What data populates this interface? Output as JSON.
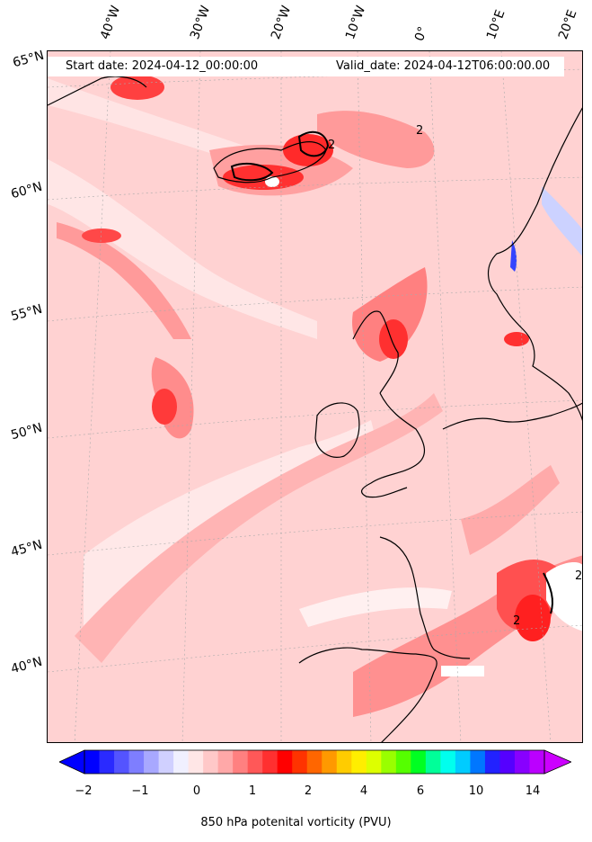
{
  "header": {
    "start_date": "Start date: 2024-04-12_00:00:00",
    "valid_date": "Valid_date: 2024-04-12T06:00:00.00"
  },
  "longitude_labels": [
    "40°W",
    "30°W",
    "20°W",
    "10°W",
    "0°",
    "10°E",
    "20°E"
  ],
  "latitude_labels": [
    "65°N",
    "60°N",
    "55°N",
    "50°N",
    "45°N",
    "40°N"
  ],
  "contour_labels": [
    "2",
    "2",
    "2",
    "2"
  ],
  "colorbar": {
    "label": "850 hPa potenital vorticity (PVU)",
    "tick_labels": [
      "−2",
      "−1",
      "0",
      "1",
      "2",
      "4",
      "6",
      "10",
      "14"
    ],
    "colors": [
      "#0000ff",
      "#2a2aff",
      "#5454ff",
      "#7e7eff",
      "#a8a8ff",
      "#d0d0ff",
      "#f0f0ff",
      "#ffe6e6",
      "#ffc8c8",
      "#ffa8a8",
      "#ff8080",
      "#ff5858",
      "#ff3030",
      "#ff0000",
      "#ff3300",
      "#ff6600",
      "#ff9900",
      "#ffcc00",
      "#ffee00",
      "#ddff00",
      "#99ff00",
      "#55ff00",
      "#00ff22",
      "#00ff99",
      "#00ffee",
      "#00ccff",
      "#0077ff",
      "#2222ff",
      "#5500ff",
      "#8800ff",
      "#bb00ff"
    ],
    "min_arrow_color": "#0000ff",
    "max_arrow_color": "#cc00ff"
  },
  "colors": {
    "background_field": "#ffd0d0",
    "high_pv": "#ff5a5a",
    "very_high_pv": "#ff1a1a",
    "low_pv": "#ffeaea",
    "coastline": "#000000"
  }
}
